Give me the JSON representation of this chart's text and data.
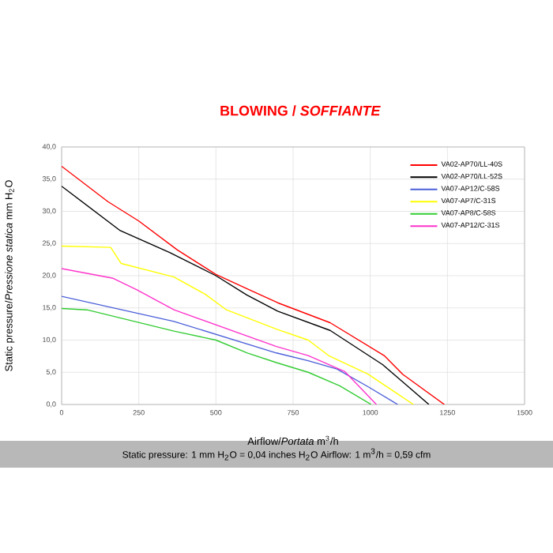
{
  "chart_data": {
    "type": "line",
    "title": "BLOWING / *SOFFIANTE*",
    "xlabel": "Airflow/*Portata* m$^{3}$/h",
    "ylabel": "Static pressure/*Pressione statica* mm H$_{2}$O",
    "annotations": [
      "Static pressure: 1 mm H$_{2}$O = 0,04 inches H$_{2}$O     Airflow: 1 m$^{3}$/h = 0,59 cfm"
    ],
    "xlim": [
      0,
      1500
    ],
    "xticks": [
      0,
      250,
      500,
      750,
      1000,
      1250,
      1500
    ],
    "ylim": [
      0,
      40
    ],
    "yticks": [
      {
        "value": 0,
        "label": "0,0"
      },
      {
        "value": 5,
        "label": "5,0"
      },
      {
        "value": 10,
        "label": "10,0"
      },
      {
        "value": 15,
        "label": "15,0"
      },
      {
        "value": 20,
        "label": "20,0"
      },
      {
        "value": 25,
        "label": "25,0"
      },
      {
        "value": 30,
        "label": "30,0"
      },
      {
        "value": 35,
        "label": "35,0"
      },
      {
        "value": 40,
        "label": "40,0"
      }
    ],
    "grid": true,
    "legend": "top right",
    "marker": "none",
    "line_style": "solid",
    "series": [
      {
        "name": "VA02-AP70/LL-40S",
        "color": "#ff0000",
        "x": [
          0,
          150,
          250,
          375,
          500,
          600,
          700,
          870,
          1045,
          1105,
          1240
        ],
        "values": [
          37,
          31.5,
          28.5,
          24,
          20.2,
          18,
          15.8,
          12.7,
          7.6,
          4.7,
          0
        ]
      },
      {
        "name": "VA02-AP70/LL-52S",
        "color": "#000000",
        "x": [
          0,
          190,
          350,
          500,
          600,
          700,
          870,
          1040,
          1190
        ],
        "values": [
          33.9,
          27,
          23.6,
          20,
          17,
          14.5,
          11.5,
          6.2,
          0
        ]
      },
      {
        "name": "VA07-AP12/C-58S",
        "color": "#4a5ed8",
        "x": [
          0,
          364,
          696,
          799,
          892,
          995,
          1089
        ],
        "values": [
          16.8,
          12.9,
          8,
          6.8,
          5.5,
          2.7,
          0
        ]
      },
      {
        "name": "VA07-AP7/C-31S",
        "color": "#ffff00",
        "x": [
          0,
          159,
          193,
          364,
          466,
          534,
          696,
          799,
          865,
          993,
          1140
        ],
        "values": [
          24.6,
          24.4,
          21.9,
          19.8,
          17.1,
          14.7,
          11.7,
          10,
          7.6,
          4.7,
          0
        ]
      },
      {
        "name": "VA07-AP8/C-58S",
        "color": "#33cc33",
        "x": [
          0,
          82,
          364,
          500,
          602,
          696,
          799,
          901,
          1003
        ],
        "values": [
          14.9,
          14.7,
          11.4,
          10,
          8,
          6.5,
          5,
          2.9,
          0
        ]
      },
      {
        "name": "VA07-AP12/C-31S",
        "color": "#ff33cc",
        "x": [
          0,
          167,
          244,
          364,
          696,
          799,
          918,
          1020
        ],
        "values": [
          21.1,
          19.6,
          17.8,
          14.7,
          9,
          7.6,
          5.1,
          0
        ]
      }
    ]
  }
}
